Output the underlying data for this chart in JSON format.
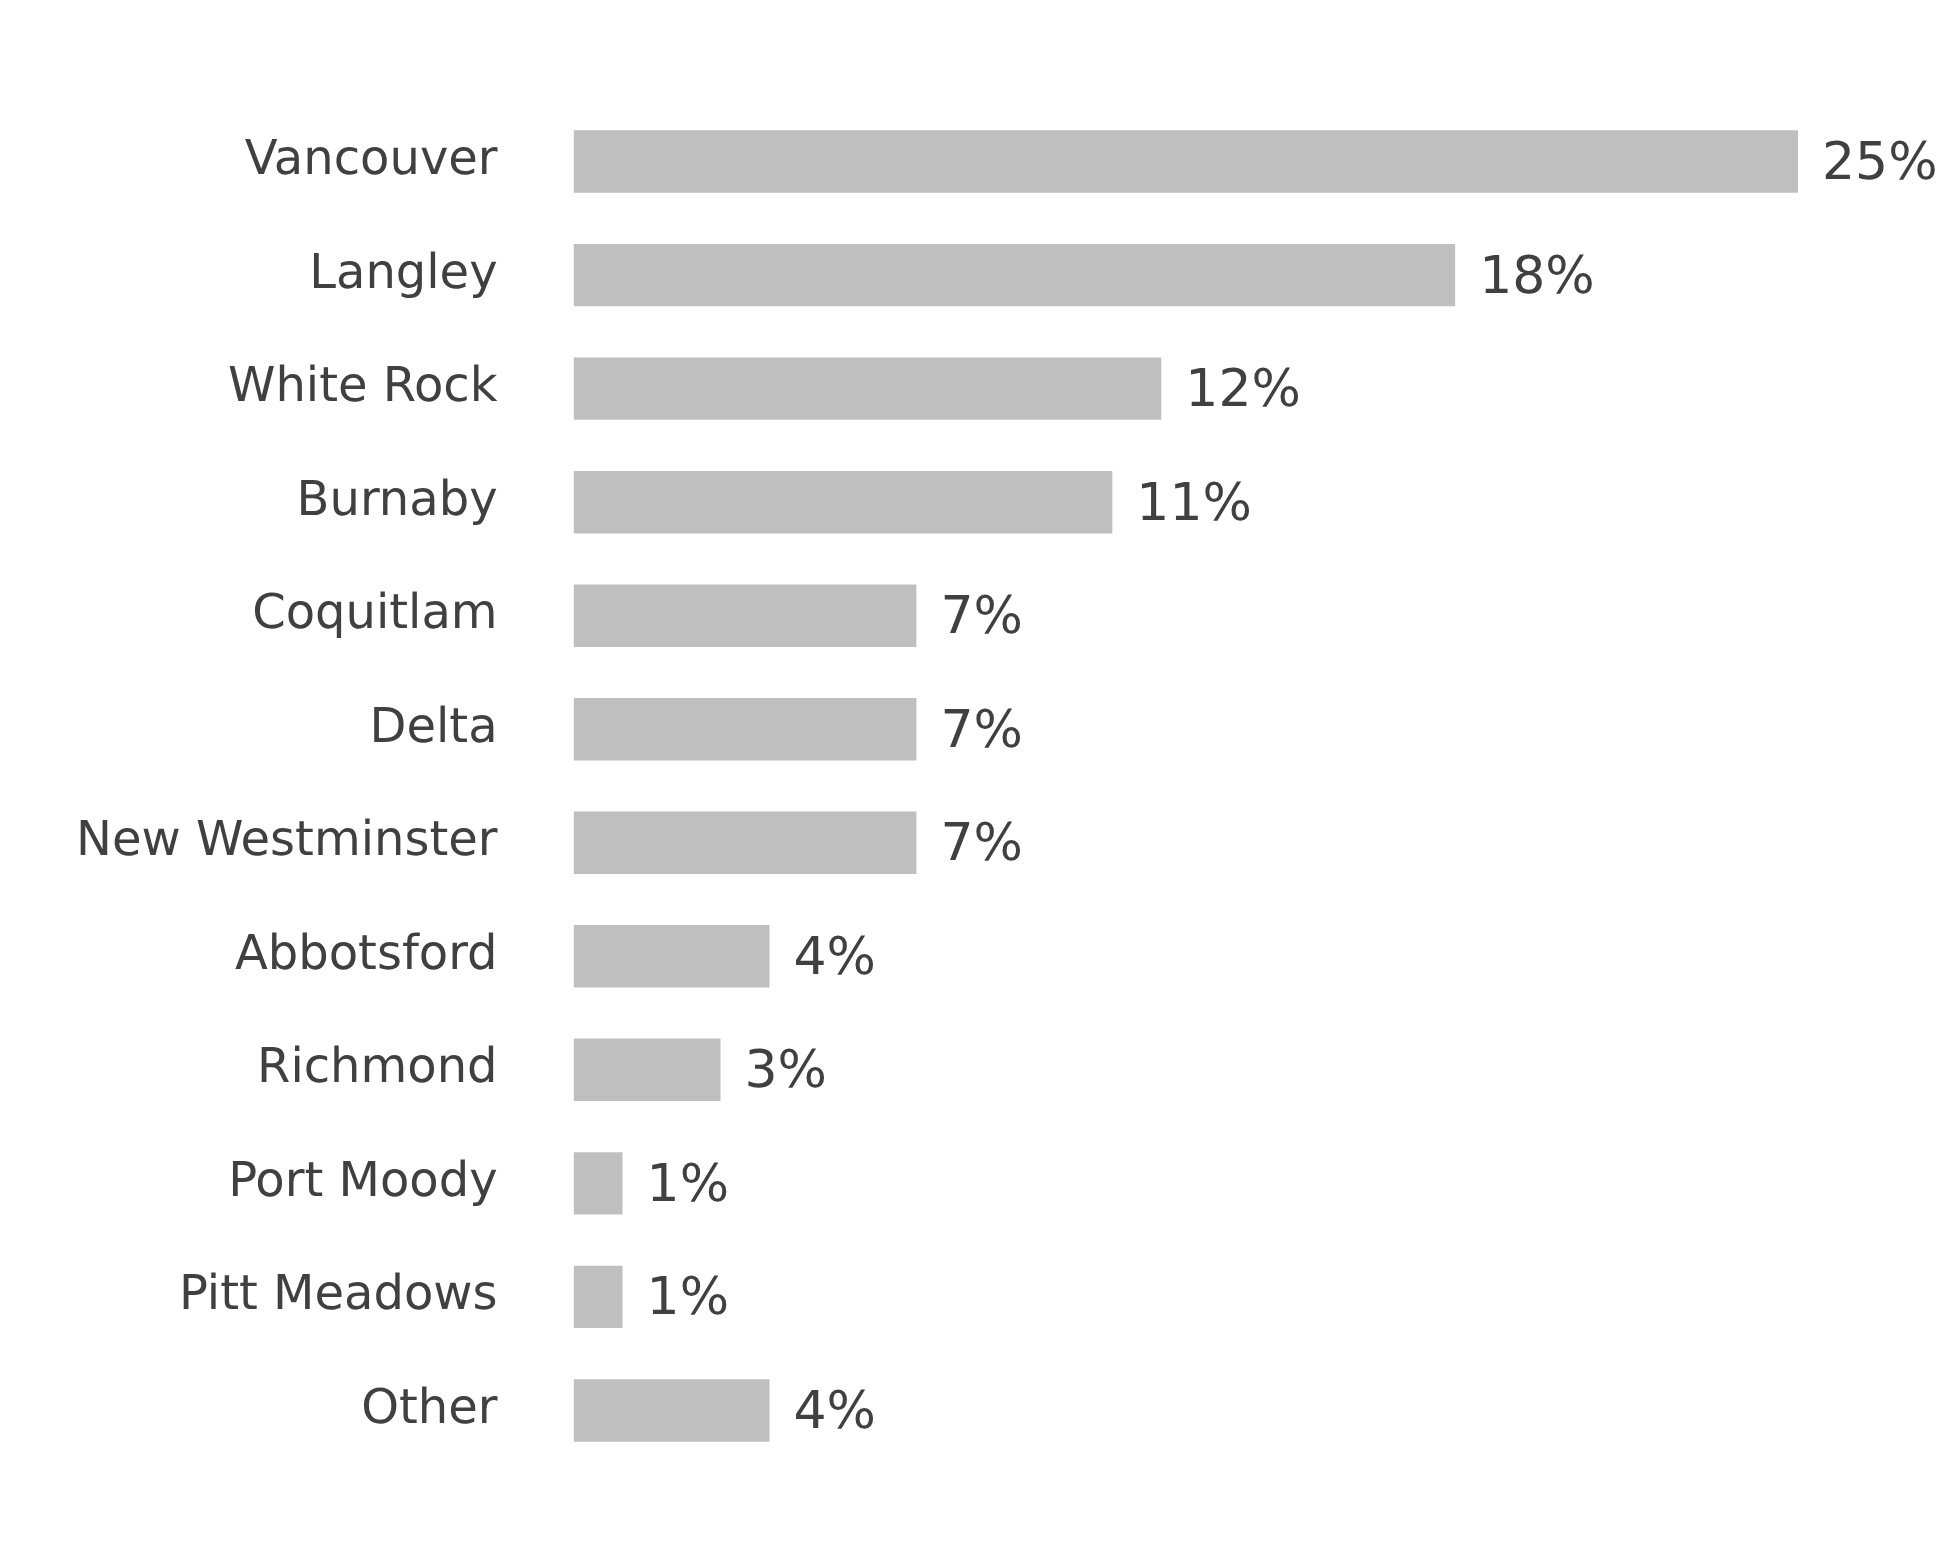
{
  "chart_data": {
    "type": "bar",
    "orientation": "horizontal",
    "categories": [
      "Vancouver",
      "Langley",
      "White Rock",
      "Burnaby",
      "Coquitlam",
      "Delta",
      "New Westminster",
      "Abbotsford",
      "Richmond",
      "Port Moody",
      "Pitt Meadows",
      "Other"
    ],
    "values": [
      25,
      18,
      12,
      11,
      7,
      7,
      7,
      4,
      3,
      1,
      1,
      4
    ],
    "value_labels": [
      "25%",
      "18%",
      "12%",
      "11%",
      "7%",
      "7%",
      "7%",
      "4%",
      "3%",
      "1%",
      "1%",
      "4%"
    ],
    "color": "#bfbfbf",
    "tick_labels": "y"
  }
}
